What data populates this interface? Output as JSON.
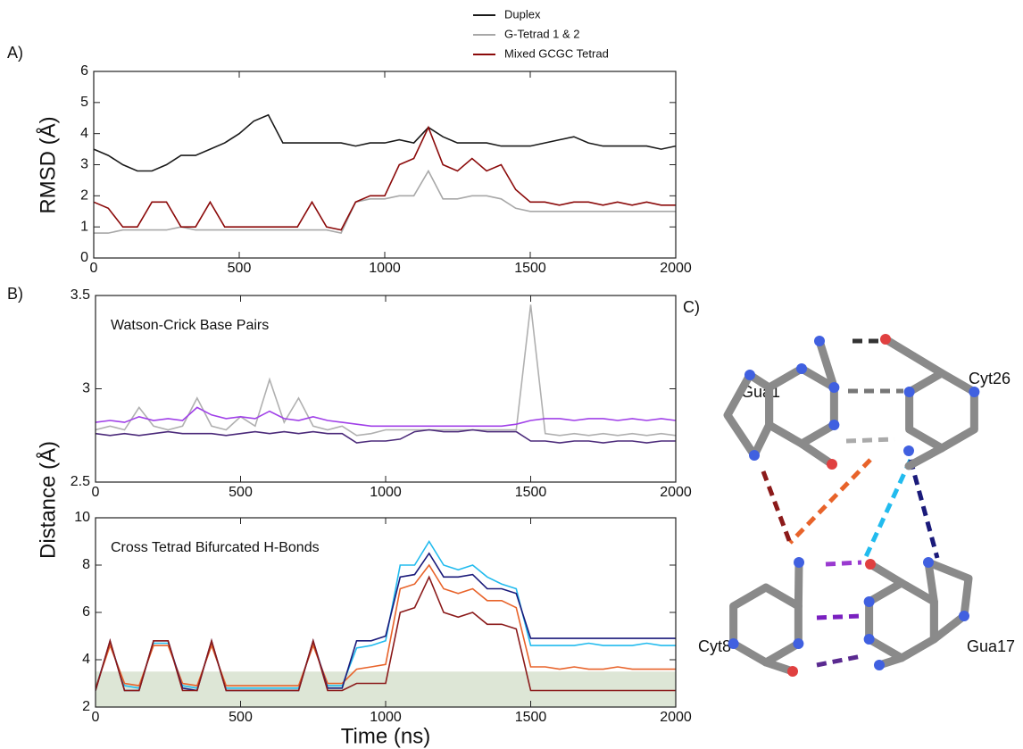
{
  "panels": {
    "a": "A)",
    "b": "B)",
    "c": "C)"
  },
  "diagram": {
    "labels": [
      "Gua1",
      "Cyt26",
      "Cyt8",
      "Gua17"
    ]
  },
  "chart_data": [
    {
      "type": "line",
      "ylabel": "RMSD (Å)",
      "x": [
        0,
        50,
        100,
        150,
        200,
        250,
        300,
        350,
        400,
        450,
        500,
        550,
        600,
        650,
        700,
        750,
        800,
        850,
        900,
        950,
        1000,
        1050,
        1100,
        1150,
        1200,
        1250,
        1300,
        1350,
        1400,
        1450,
        1500,
        1550,
        1600,
        1650,
        1700,
        1750,
        1800,
        1850,
        1900,
        1950,
        2000
      ],
      "xlim": [
        0,
        2000
      ],
      "xticks": [
        0,
        500,
        1000,
        1500,
        2000
      ],
      "ylim": [
        0,
        6
      ],
      "yticks": [
        0,
        1,
        2,
        3,
        4,
        5,
        6
      ],
      "series": [
        {
          "name": "Duplex",
          "color": "#1a1a1a",
          "values": [
            3.5,
            3.3,
            3.0,
            2.8,
            2.8,
            3.0,
            3.3,
            3.3,
            3.5,
            3.7,
            4.0,
            4.4,
            4.6,
            3.7,
            3.7,
            3.7,
            3.7,
            3.7,
            3.6,
            3.7,
            3.7,
            3.8,
            3.7,
            4.2,
            3.9,
            3.7,
            3.7,
            3.7,
            3.6,
            3.6,
            3.6,
            3.7,
            3.8,
            3.9,
            3.7,
            3.6,
            3.6,
            3.6,
            3.6,
            3.5,
            3.6
          ]
        },
        {
          "name": "G-Tetrad 1 & 2",
          "color": "#a8a8a8",
          "values": [
            0.8,
            0.8,
            0.9,
            0.9,
            0.9,
            0.9,
            1.0,
            0.9,
            0.9,
            0.9,
            0.9,
            0.9,
            0.9,
            0.9,
            0.9,
            0.9,
            0.9,
            0.8,
            1.8,
            1.9,
            1.9,
            2.0,
            2.0,
            2.8,
            1.9,
            1.9,
            2.0,
            2.0,
            1.9,
            1.6,
            1.5,
            1.5,
            1.5,
            1.5,
            1.5,
            1.5,
            1.5,
            1.5,
            1.5,
            1.5,
            1.5
          ]
        },
        {
          "name": "Mixed GCGC Tetrad",
          "color": "#8b0a0a",
          "values": [
            1.8,
            1.6,
            1.0,
            1.0,
            1.8,
            1.8,
            1.0,
            1.0,
            1.8,
            1.0,
            1.0,
            1.0,
            1.0,
            1.0,
            1.0,
            1.8,
            1.0,
            0.9,
            1.8,
            2.0,
            2.0,
            3.0,
            3.2,
            4.2,
            3.0,
            2.8,
            3.2,
            2.8,
            3.0,
            2.2,
            1.8,
            1.8,
            1.7,
            1.8,
            1.8,
            1.7,
            1.8,
            1.7,
            1.8,
            1.7,
            1.7
          ]
        }
      ]
    },
    {
      "type": "line",
      "title": "Watson-Crick Base Pairs",
      "ylabel": "Distance (Å)",
      "x": [
        0,
        50,
        100,
        150,
        200,
        250,
        300,
        350,
        400,
        450,
        500,
        550,
        600,
        650,
        700,
        750,
        800,
        850,
        900,
        950,
        1000,
        1050,
        1100,
        1150,
        1200,
        1250,
        1300,
        1350,
        1400,
        1450,
        1500,
        1550,
        1600,
        1650,
        1700,
        1750,
        1800,
        1850,
        1900,
        1950,
        2000
      ],
      "xlim": [
        0,
        2000
      ],
      "xticks": [
        0,
        500,
        1000,
        1500,
        2000
      ],
      "ylim": [
        2.5,
        3.5
      ],
      "yticks": [
        2.5,
        3,
        3.5
      ],
      "series": [
        {
          "color": "#b0b0b0",
          "values": [
            2.78,
            2.8,
            2.78,
            2.9,
            2.8,
            2.78,
            2.8,
            2.95,
            2.8,
            2.78,
            2.85,
            2.8,
            3.05,
            2.82,
            2.95,
            2.8,
            2.78,
            2.8,
            2.75,
            2.76,
            2.78,
            2.78,
            2.78,
            2.78,
            2.78,
            2.78,
            2.78,
            2.78,
            2.78,
            2.78,
            3.45,
            2.76,
            2.75,
            2.76,
            2.75,
            2.76,
            2.75,
            2.76,
            2.75,
            2.76,
            2.75
          ]
        },
        {
          "color": "#a040e8",
          "values": [
            2.82,
            2.83,
            2.82,
            2.85,
            2.83,
            2.84,
            2.83,
            2.9,
            2.86,
            2.84,
            2.85,
            2.84,
            2.88,
            2.84,
            2.83,
            2.85,
            2.83,
            2.82,
            2.81,
            2.8,
            2.8,
            2.8,
            2.8,
            2.8,
            2.8,
            2.8,
            2.8,
            2.8,
            2.8,
            2.81,
            2.83,
            2.84,
            2.84,
            2.83,
            2.84,
            2.84,
            2.83,
            2.84,
            2.83,
            2.84,
            2.83
          ]
        },
        {
          "color": "#4b2a7a",
          "values": [
            2.76,
            2.75,
            2.76,
            2.75,
            2.76,
            2.77,
            2.76,
            2.76,
            2.76,
            2.75,
            2.76,
            2.77,
            2.76,
            2.77,
            2.76,
            2.77,
            2.76,
            2.76,
            2.71,
            2.72,
            2.72,
            2.73,
            2.77,
            2.78,
            2.77,
            2.77,
            2.78,
            2.77,
            2.77,
            2.77,
            2.72,
            2.72,
            2.71,
            2.72,
            2.72,
            2.71,
            2.72,
            2.72,
            2.71,
            2.72,
            2.72
          ]
        }
      ]
    },
    {
      "type": "line",
      "title": "Cross Tetrad Bifurcated H-Bonds",
      "xlabel": "Time (ns)",
      "x": [
        0,
        50,
        100,
        150,
        200,
        250,
        300,
        350,
        400,
        450,
        500,
        550,
        600,
        650,
        700,
        750,
        800,
        850,
        900,
        950,
        1000,
        1050,
        1100,
        1150,
        1200,
        1250,
        1300,
        1350,
        1400,
        1450,
        1500,
        1550,
        1600,
        1650,
        1700,
        1750,
        1800,
        1850,
        1900,
        1950,
        2000
      ],
      "xlim": [
        0,
        2000
      ],
      "xticks": [
        0,
        500,
        1000,
        1500,
        2000
      ],
      "ylim": [
        2,
        10
      ],
      "yticks": [
        2,
        4,
        6,
        8,
        10
      ],
      "band": [
        2,
        3.5
      ],
      "band_color": "#dde6d6",
      "series": [
        {
          "color": "#22bbee",
          "values": [
            2.8,
            4.7,
            2.9,
            2.8,
            4.7,
            4.7,
            2.9,
            2.8,
            4.7,
            2.8,
            2.8,
            2.8,
            2.8,
            2.8,
            2.8,
            4.7,
            2.9,
            2.9,
            4.5,
            4.6,
            4.8,
            8.0,
            8.0,
            9.0,
            8.0,
            7.8,
            8.0,
            7.5,
            7.2,
            7.0,
            4.6,
            4.6,
            4.6,
            4.6,
            4.7,
            4.6,
            4.6,
            4.6,
            4.7,
            4.6,
            4.6
          ]
        },
        {
          "color": "#e8632a",
          "values": [
            2.8,
            4.6,
            3.0,
            2.9,
            4.6,
            4.6,
            3.0,
            2.9,
            4.6,
            2.9,
            2.9,
            2.9,
            2.9,
            2.9,
            2.9,
            4.6,
            3.0,
            3.0,
            3.6,
            3.7,
            3.8,
            7.0,
            7.2,
            8.0,
            7.0,
            6.8,
            7.0,
            6.5,
            6.5,
            6.2,
            3.7,
            3.7,
            3.6,
            3.7,
            3.6,
            3.6,
            3.7,
            3.6,
            3.6,
            3.6,
            3.6
          ]
        },
        {
          "color": "#1a1a7a",
          "values": [
            2.7,
            4.8,
            2.7,
            2.7,
            4.8,
            4.8,
            2.8,
            2.7,
            4.8,
            2.7,
            2.7,
            2.7,
            2.7,
            2.7,
            2.7,
            4.8,
            2.8,
            2.8,
            4.8,
            4.8,
            5.0,
            7.5,
            7.6,
            8.5,
            7.5,
            7.5,
            7.6,
            7.0,
            7.0,
            6.8,
            4.9,
            4.9,
            4.9,
            4.9,
            4.9,
            4.9,
            4.9,
            4.9,
            4.9,
            4.9,
            4.9
          ]
        },
        {
          "color": "#8b1a1a",
          "values": [
            2.7,
            4.8,
            2.7,
            2.7,
            4.8,
            4.8,
            2.7,
            2.7,
            4.8,
            2.7,
            2.7,
            2.7,
            2.7,
            2.7,
            2.7,
            4.8,
            2.7,
            2.7,
            3.0,
            3.0,
            3.0,
            6.0,
            6.2,
            7.5,
            6.0,
            5.8,
            6.0,
            5.5,
            5.5,
            5.3,
            2.7,
            2.7,
            2.7,
            2.7,
            2.7,
            2.7,
            2.7,
            2.7,
            2.7,
            2.7,
            2.7
          ]
        }
      ]
    }
  ]
}
